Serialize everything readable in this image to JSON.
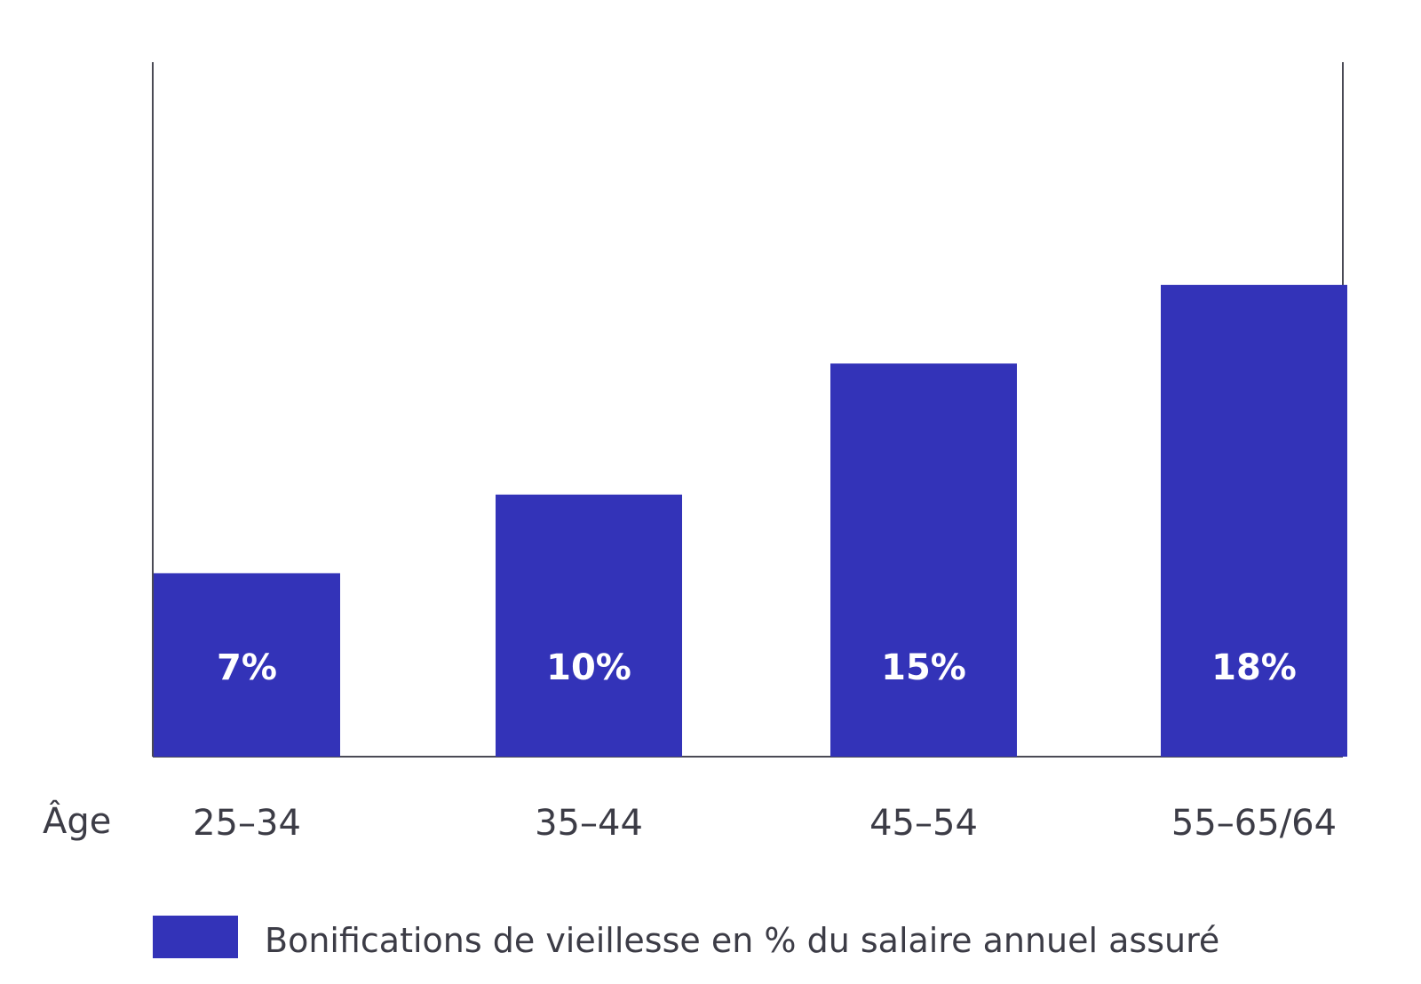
{
  "chart_data": {
    "type": "bar",
    "xlabel": "Âge",
    "categories": [
      "25–34",
      "35–44",
      "45–54",
      "55–65/64"
    ],
    "series": [
      {
        "name": "Bonifications de vieillesse en % du salaire annuel assuré",
        "values": [
          7,
          10,
          15,
          18
        ]
      }
    ],
    "data_labels": [
      "7%",
      "10%",
      "15%",
      "18%"
    ],
    "ylim": [
      0,
      26.5
    ],
    "grid": false,
    "legend_position": "bottom",
    "colors": {
      "bar": "#3333b8",
      "axis": "#4a4a55",
      "text": "#3c3c46",
      "bar_label": "#ffffff"
    }
  }
}
